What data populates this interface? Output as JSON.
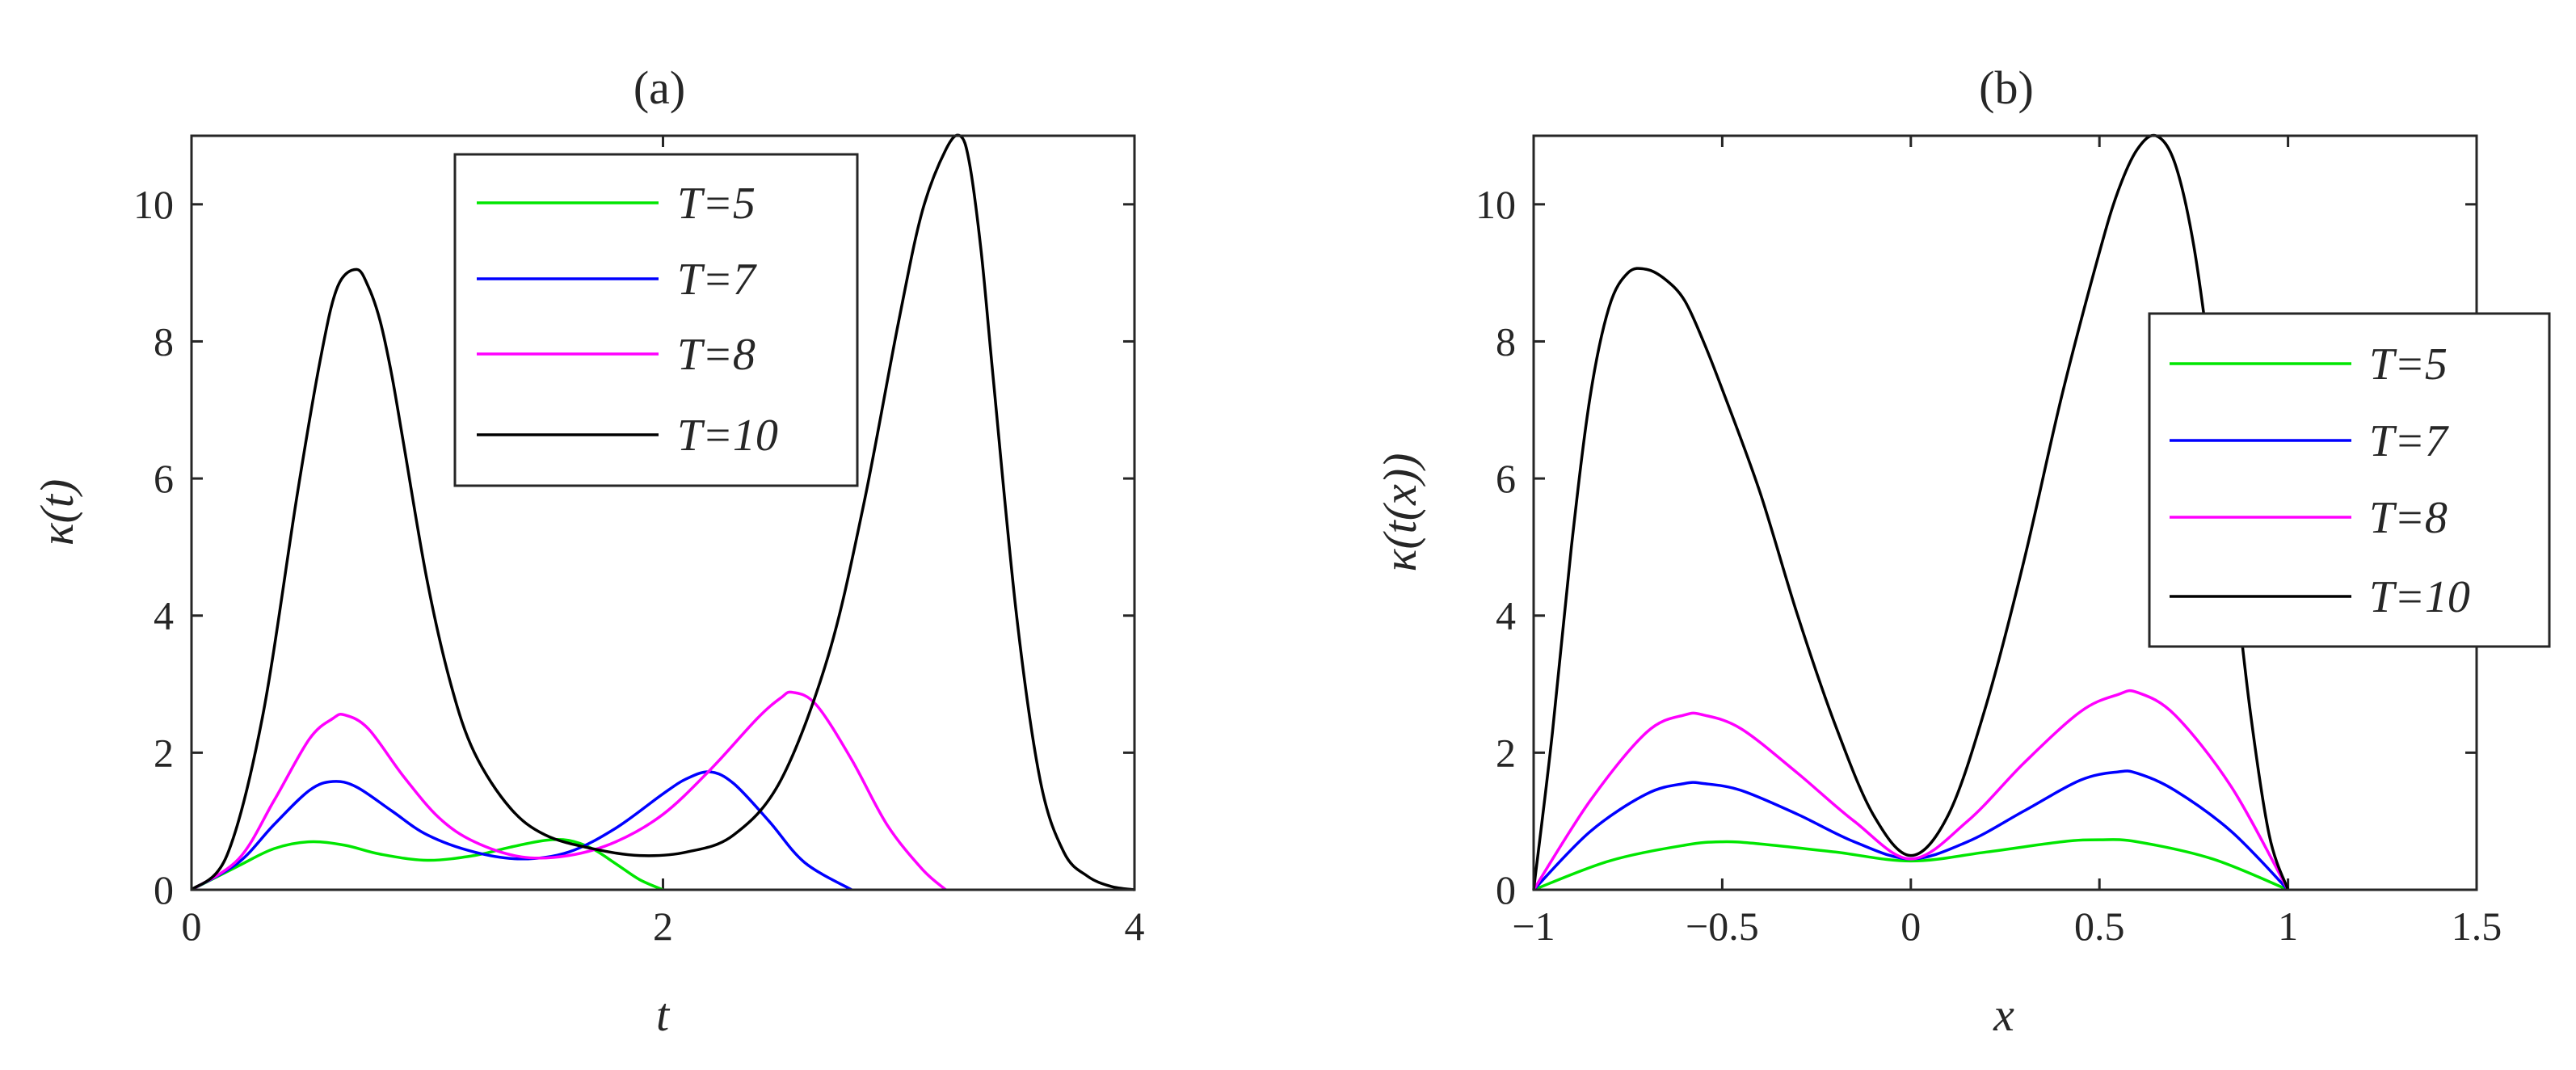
{
  "chart_data": [
    {
      "type": "line",
      "title": "(a)",
      "xlabel": "t",
      "ylabel": "κ(t)",
      "xlim": [
        0,
        4
      ],
      "ylim": [
        0,
        11
      ],
      "xticks": [
        0,
        2,
        4
      ],
      "yticks": [
        0,
        2,
        4,
        6,
        8,
        10
      ],
      "xtick_labels": [
        "0",
        "2",
        "4"
      ],
      "ytick_labels": [
        "0",
        "2",
        "4",
        "6",
        "8",
        "10"
      ],
      "legend_position": "top-center",
      "series": [
        {
          "name": "T=5",
          "color": "#00e600",
          "x": [
            0,
            0.2,
            0.35,
            0.5,
            0.65,
            0.8,
            1.0,
            1.2,
            1.35,
            1.5,
            1.6,
            1.7,
            1.8,
            1.9,
            2.0
          ],
          "y": [
            0,
            0.35,
            0.6,
            0.7,
            0.65,
            0.52,
            0.43,
            0.5,
            0.62,
            0.72,
            0.72,
            0.6,
            0.38,
            0.15,
            0
          ]
        },
        {
          "name": "T=7",
          "color": "#0000ff",
          "x": [
            0,
            0.2,
            0.35,
            0.5,
            0.6,
            0.7,
            0.85,
            1.0,
            1.2,
            1.4,
            1.6,
            1.8,
            2.0,
            2.1,
            2.2,
            2.3,
            2.45,
            2.6,
            2.8
          ],
          "y": [
            0,
            0.4,
            0.95,
            1.45,
            1.58,
            1.5,
            1.15,
            0.8,
            0.55,
            0.45,
            0.55,
            0.9,
            1.4,
            1.62,
            1.72,
            1.55,
            1.0,
            0.4,
            0
          ]
        },
        {
          "name": "T=8",
          "color": "#ff00ff",
          "x": [
            0,
            0.2,
            0.35,
            0.5,
            0.6,
            0.65,
            0.75,
            0.9,
            1.05,
            1.2,
            1.4,
            1.6,
            1.8,
            2.0,
            2.2,
            2.4,
            2.5,
            2.55,
            2.65,
            2.8,
            2.95,
            3.1,
            3.2
          ],
          "y": [
            0,
            0.45,
            1.3,
            2.2,
            2.5,
            2.55,
            2.35,
            1.65,
            1.05,
            0.7,
            0.48,
            0.5,
            0.7,
            1.1,
            1.75,
            2.5,
            2.8,
            2.88,
            2.7,
            1.9,
            0.95,
            0.3,
            0
          ]
        },
        {
          "name": "T=10",
          "color": "#000000",
          "x": [
            0,
            0.15,
            0.3,
            0.45,
            0.55,
            0.62,
            0.7,
            0.75,
            0.8,
            0.85,
            0.9,
            1.0,
            1.1,
            1.2,
            1.35,
            1.5,
            1.7,
            1.9,
            2.1,
            2.3,
            2.5,
            2.7,
            2.85,
            3.0,
            3.1,
            3.2,
            3.26,
            3.3,
            3.35,
            3.4,
            3.5,
            3.6,
            3.7,
            3.8,
            3.9,
            4.0
          ],
          "y": [
            0,
            0.5,
            2.5,
            5.8,
            7.8,
            8.8,
            9.05,
            8.8,
            8.3,
            7.5,
            6.5,
            4.5,
            3.0,
            2.0,
            1.2,
            0.8,
            0.6,
            0.5,
            0.55,
            0.8,
            1.6,
            3.4,
            5.6,
            8.3,
            9.9,
            10.8,
            11.0,
            10.6,
            9.3,
            7.5,
            4.0,
            1.6,
            0.55,
            0.2,
            0.05,
            0
          ]
        }
      ]
    },
    {
      "type": "line",
      "title": "(b)",
      "xlabel": "x",
      "ylabel": "κ(t(x))",
      "xlim": [
        -1,
        1.5
      ],
      "ylim": [
        0,
        11
      ],
      "xticks": [
        -1,
        -0.5,
        0,
        0.5,
        1,
        1.5
      ],
      "yticks": [
        0,
        2,
        4,
        6,
        8,
        10
      ],
      "xtick_labels": [
        "−1",
        "−0.5",
        "0",
        "0.5",
        "1",
        "1.5"
      ],
      "ytick_labels": [
        "0",
        "2",
        "4",
        "6",
        "8",
        "10"
      ],
      "legend_position": "right",
      "series": [
        {
          "name": "T=5",
          "color": "#00e600",
          "x": [
            -1,
            -0.8,
            -0.6,
            -0.5,
            -0.4,
            -0.2,
            0,
            0.2,
            0.4,
            0.5,
            0.6,
            0.8,
            1.0
          ],
          "y": [
            0,
            0.42,
            0.65,
            0.7,
            0.67,
            0.55,
            0.42,
            0.55,
            0.7,
            0.73,
            0.7,
            0.45,
            0
          ]
        },
        {
          "name": "T=7",
          "color": "#0000ff",
          "x": [
            -1,
            -0.85,
            -0.7,
            -0.6,
            -0.55,
            -0.45,
            -0.3,
            -0.15,
            0,
            0.15,
            0.3,
            0.45,
            0.55,
            0.6,
            0.7,
            0.85,
            1.0
          ],
          "y": [
            0,
            0.85,
            1.4,
            1.55,
            1.55,
            1.45,
            1.1,
            0.7,
            0.45,
            0.7,
            1.15,
            1.6,
            1.72,
            1.7,
            1.45,
            0.85,
            0
          ]
        },
        {
          "name": "T=8",
          "color": "#ff00ff",
          "x": [
            -1,
            -0.85,
            -0.7,
            -0.6,
            -0.55,
            -0.45,
            -0.3,
            -0.15,
            0,
            0.15,
            0.3,
            0.45,
            0.55,
            0.6,
            0.7,
            0.85,
            1.0
          ],
          "y": [
            0,
            1.3,
            2.3,
            2.55,
            2.55,
            2.35,
            1.7,
            1.0,
            0.45,
            1.0,
            1.85,
            2.6,
            2.85,
            2.88,
            2.55,
            1.5,
            0
          ]
        },
        {
          "name": "T=10",
          "color": "#000000",
          "x": [
            -1,
            -0.95,
            -0.9,
            -0.85,
            -0.8,
            -0.75,
            -0.7,
            -0.65,
            -0.6,
            -0.55,
            -0.5,
            -0.4,
            -0.3,
            -0.2,
            -0.1,
            0,
            0.1,
            0.2,
            0.3,
            0.4,
            0.5,
            0.55,
            0.6,
            0.65,
            0.7,
            0.75,
            0.8,
            0.85,
            0.9,
            0.95,
            1.0
          ],
          "y": [
            0,
            2.3,
            5.0,
            7.2,
            8.5,
            9.0,
            9.05,
            8.9,
            8.6,
            8.0,
            7.3,
            5.8,
            4.0,
            2.4,
            1.1,
            0.5,
            1.1,
            2.7,
            4.8,
            7.2,
            9.3,
            10.2,
            10.8,
            11.0,
            10.6,
            9.4,
            7.4,
            5.0,
            2.6,
            0.8,
            0
          ]
        }
      ]
    }
  ]
}
